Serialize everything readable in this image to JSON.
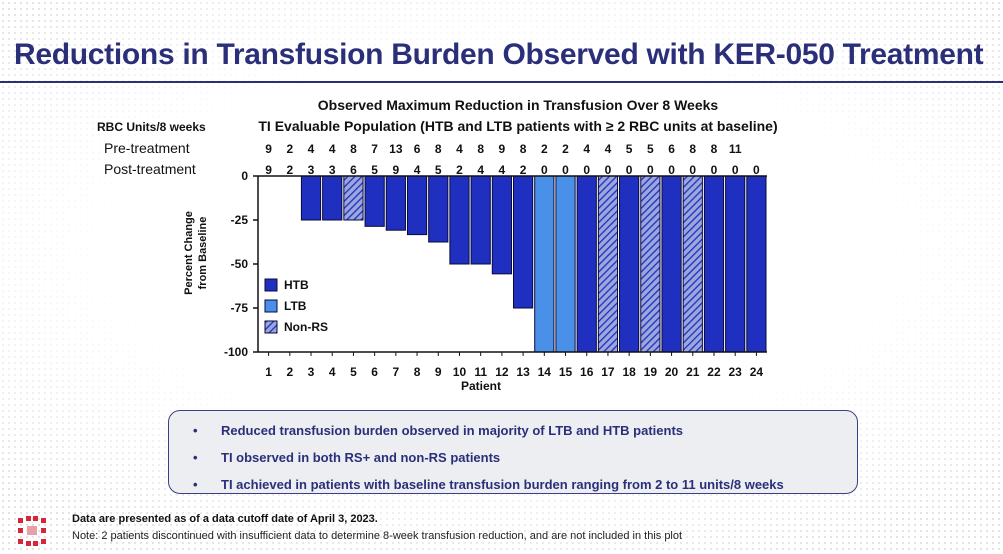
{
  "page": {
    "title": "Reductions in Transfusion Burden Observed with KER-050 Treatment"
  },
  "chart_data": {
    "type": "bar",
    "title": "Observed Maximum Reduction in Transfusion Over 8 Weeks",
    "subtitle": "TI Evaluable Population (HTB and LTB patients with ≥ 2 RBC units at baseline)",
    "row_header": "RBC Units/8 weeks",
    "pre_label": "Pre-treatment",
    "post_label": "Post-treatment",
    "xlabel": "Patient",
    "ylabel_line1": "Percent Change",
    "ylabel_line2": "from Baseline",
    "ylim": [
      -100,
      0
    ],
    "yticks": [
      "0",
      "-25",
      "-50",
      "-75",
      "-100"
    ],
    "categories": [
      "1",
      "2",
      "3",
      "4",
      "5",
      "6",
      "7",
      "8",
      "9",
      "10",
      "11",
      "12",
      "13",
      "14",
      "15",
      "16",
      "17",
      "18",
      "19",
      "20",
      "21",
      "22",
      "23",
      "24"
    ],
    "pre_treatment": [
      "9",
      "2",
      "4",
      "4",
      "8",
      "7",
      "13",
      "6",
      "8",
      "4",
      "8",
      "9",
      "8",
      "2",
      "2",
      "4",
      "4",
      "5",
      "5",
      "6",
      "8",
      "8",
      "11",
      ""
    ],
    "post_treatment": [
      "9",
      "2",
      "3",
      "3",
      "6",
      "5",
      "9",
      "4",
      "5",
      "2",
      "4",
      "4",
      "2",
      "0",
      "0",
      "0",
      "0",
      "0",
      "0",
      "0",
      "0",
      "0",
      "0",
      "0"
    ],
    "values": [
      0,
      0,
      -25,
      -25,
      -25,
      -28.6,
      -30.8,
      -33.3,
      -37.5,
      -50,
      -50,
      -55.6,
      -75,
      -100,
      -100,
      -100,
      -100,
      -100,
      -100,
      -100,
      -100,
      -100,
      -100,
      -100
    ],
    "groups": [
      "HTB",
      "HTB",
      "HTB",
      "HTB",
      "Non-RS",
      "HTB",
      "HTB",
      "HTB",
      "HTB",
      "HTB",
      "HTB",
      "HTB",
      "HTB",
      "LTB",
      "LTB",
      "HTB",
      "Non-RS",
      "HTB",
      "Non-RS",
      "HTB",
      "Non-RS",
      "HTB",
      "HTB",
      "HTB"
    ],
    "legend": [
      {
        "key": "HTB",
        "label": "HTB"
      },
      {
        "key": "LTB",
        "label": "LTB"
      },
      {
        "key": "Non-RS",
        "label": "Non-RS"
      }
    ],
    "colors": {
      "HTB": "#1f2fbf",
      "LTB": "#4a90e8",
      "hatch_bg": "#9aa6dc",
      "hatch_line": "#1f2fbf"
    }
  },
  "bullets": [
    "Reduced transfusion burden observed in majority of LTB and HTB patients",
    "TI observed in both RS+ and non-RS patients",
    "TI achieved in patients with baseline transfusion burden ranging from 2 to 11 units/8 weeks"
  ],
  "footer": {
    "note1": "Data are presented as of a data cutoff date of April 3, 2023.",
    "note2": "Note: 2 patients discontinued with insufficient data to determine 8-week transfusion reduction, and are not included in this plot"
  }
}
